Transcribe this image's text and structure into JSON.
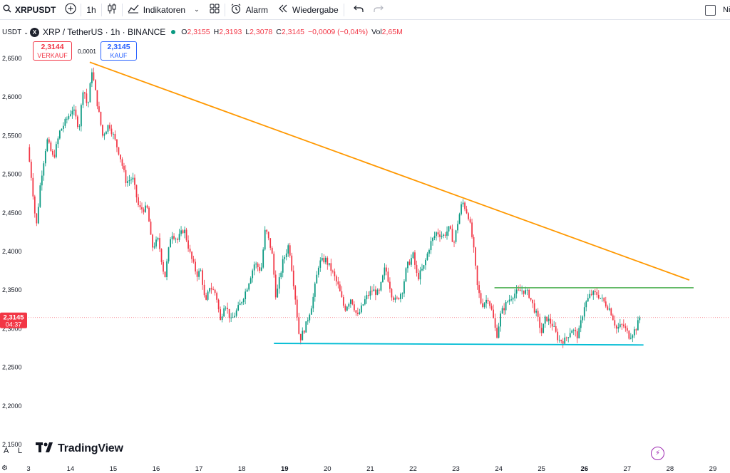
{
  "toolbar": {
    "symbol": "XRPUSDT",
    "interval": "1h",
    "indicators": "Indikatoren",
    "alert": "Alarm",
    "replay": "Wiedergabe",
    "cut_label": "Ni"
  },
  "legend": {
    "currency": "USDT",
    "coin_letter": "X",
    "title": "XRP / TetherUS · 1h · BINANCE",
    "open_k": "O",
    "open": "2,3155",
    "high_k": "H",
    "high": "2,3193",
    "low_k": "L",
    "low": "2,3078",
    "close_k": "C",
    "close": "2,3145",
    "change": "−0,0009 (−0,04%)",
    "vol_k": "Vol",
    "vol": "2,65M"
  },
  "quote": {
    "sell_price": "2,3144",
    "sell_label": "VERKAUF",
    "spread": "0,0001",
    "buy_price": "2,3145",
    "buy_label": "KAUF"
  },
  "price_tag": {
    "price": "2,3145",
    "countdown": "04:37"
  },
  "footer": {
    "logo": "TradingView",
    "auto": "A",
    "log": "L"
  },
  "colors": {
    "up": "#089981",
    "down": "#f23645",
    "trend_line": "#ff9800",
    "resistance": "#4caf50",
    "support": "#00bcd4"
  },
  "chart_data": {
    "type": "candlestick",
    "y_ticks": [
      "2,6500",
      "2,6000",
      "2,5500",
      "2,5000",
      "2,4500",
      "2,4000",
      "2,3500",
      "2,3000",
      "2,2500",
      "2,2000",
      "2,1500"
    ],
    "x_ticks": [
      "3",
      "14",
      "15",
      "16",
      "17",
      "18",
      "19",
      "20",
      "21",
      "22",
      "23",
      "24",
      "25",
      "26",
      "27",
      "28",
      "29"
    ],
    "ylim": [
      2.128,
      2.672
    ],
    "xlim": [
      13.02,
      29.4
    ],
    "anchors": [
      [
        13.0,
        2.535
      ],
      [
        13.1,
        2.49
      ],
      [
        13.2,
        2.43
      ],
      [
        13.3,
        2.49
      ],
      [
        13.45,
        2.545
      ],
      [
        13.6,
        2.52
      ],
      [
        13.75,
        2.555
      ],
      [
        13.9,
        2.57
      ],
      [
        14.05,
        2.585
      ],
      [
        14.2,
        2.56
      ],
      [
        14.3,
        2.615
      ],
      [
        14.4,
        2.585
      ],
      [
        14.5,
        2.635
      ],
      [
        14.6,
        2.6
      ],
      [
        14.75,
        2.55
      ],
      [
        14.9,
        2.565
      ],
      [
        15.0,
        2.55
      ],
      [
        15.15,
        2.525
      ],
      [
        15.3,
        2.49
      ],
      [
        15.45,
        2.495
      ],
      [
        15.6,
        2.455
      ],
      [
        15.8,
        2.455
      ],
      [
        15.9,
        2.405
      ],
      [
        16.05,
        2.415
      ],
      [
        16.2,
        2.365
      ],
      [
        16.35,
        2.425
      ],
      [
        16.5,
        2.415
      ],
      [
        16.65,
        2.43
      ],
      [
        16.8,
        2.395
      ],
      [
        16.95,
        2.37
      ],
      [
        17.05,
        2.375
      ],
      [
        17.15,
        2.33
      ],
      [
        17.25,
        2.355
      ],
      [
        17.4,
        2.345
      ],
      [
        17.5,
        2.31
      ],
      [
        17.6,
        2.335
      ],
      [
        17.75,
        2.31
      ],
      [
        17.95,
        2.33
      ],
      [
        18.1,
        2.35
      ],
      [
        18.3,
        2.385
      ],
      [
        18.45,
        2.375
      ],
      [
        18.55,
        2.43
      ],
      [
        18.7,
        2.4
      ],
      [
        18.8,
        2.34
      ],
      [
        18.95,
        2.385
      ],
      [
        19.1,
        2.41
      ],
      [
        19.25,
        2.34
      ],
      [
        19.35,
        2.285
      ],
      [
        19.5,
        2.305
      ],
      [
        19.65,
        2.335
      ],
      [
        19.8,
        2.385
      ],
      [
        19.95,
        2.39
      ],
      [
        20.1,
        2.375
      ],
      [
        20.25,
        2.355
      ],
      [
        20.4,
        2.325
      ],
      [
        20.55,
        2.34
      ],
      [
        20.7,
        2.315
      ],
      [
        20.9,
        2.34
      ],
      [
        21.05,
        2.35
      ],
      [
        21.2,
        2.345
      ],
      [
        21.35,
        2.38
      ],
      [
        21.5,
        2.345
      ],
      [
        21.6,
        2.335
      ],
      [
        21.75,
        2.35
      ],
      [
        21.85,
        2.38
      ],
      [
        22.0,
        2.395
      ],
      [
        22.1,
        2.365
      ],
      [
        22.25,
        2.38
      ],
      [
        22.4,
        2.41
      ],
      [
        22.55,
        2.425
      ],
      [
        22.7,
        2.42
      ],
      [
        22.85,
        2.43
      ],
      [
        22.95,
        2.41
      ],
      [
        23.05,
        2.44
      ],
      [
        23.15,
        2.465
      ],
      [
        23.3,
        2.445
      ],
      [
        23.4,
        2.41
      ],
      [
        23.5,
        2.355
      ],
      [
        23.6,
        2.33
      ],
      [
        23.75,
        2.34
      ],
      [
        23.85,
        2.32
      ],
      [
        23.95,
        2.29
      ],
      [
        24.05,
        2.32
      ],
      [
        24.2,
        2.335
      ],
      [
        24.35,
        2.345
      ],
      [
        24.55,
        2.35
      ],
      [
        24.7,
        2.345
      ],
      [
        24.8,
        2.33
      ],
      [
        24.9,
        2.315
      ],
      [
        25.0,
        2.295
      ],
      [
        25.1,
        2.315
      ],
      [
        25.25,
        2.305
      ],
      [
        25.4,
        2.285
      ],
      [
        25.55,
        2.285
      ],
      [
        25.7,
        2.3
      ],
      [
        25.85,
        2.29
      ],
      [
        26.0,
        2.33
      ],
      [
        26.15,
        2.345
      ],
      [
        26.3,
        2.345
      ],
      [
        26.45,
        2.335
      ],
      [
        26.6,
        2.325
      ],
      [
        26.75,
        2.3
      ],
      [
        26.9,
        2.305
      ],
      [
        27.05,
        2.29
      ],
      [
        27.2,
        2.3
      ],
      [
        27.3,
        2.3145
      ]
    ],
    "trend_line": {
      "from": [
        14.45,
        2.645
      ],
      "to": [
        28.45,
        2.363
      ]
    },
    "resistance_line": {
      "from": [
        23.9,
        2.353
      ],
      "to": [
        28.55,
        2.353
      ]
    },
    "support_line": {
      "from": [
        18.75,
        2.281
      ],
      "to": [
        27.38,
        2.279
      ]
    },
    "last_price": 2.3145
  }
}
